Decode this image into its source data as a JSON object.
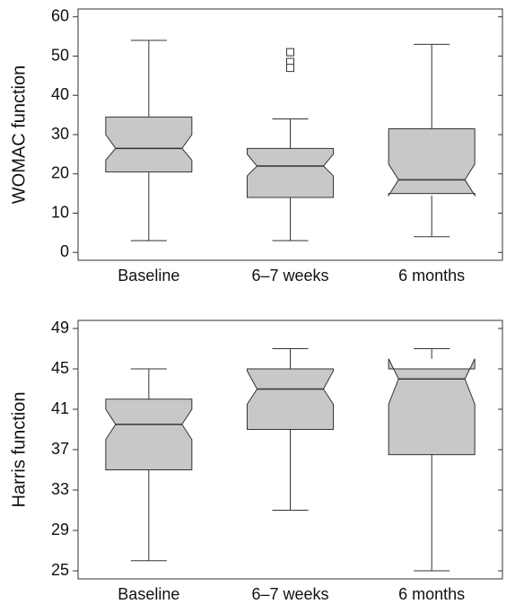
{
  "chart_data": [
    {
      "type": "box",
      "ylabel": "WOMAC function",
      "categories": [
        "Baseline",
        "6–7 weeks",
        "6 months"
      ],
      "whisker_low": [
        3,
        3,
        4
      ],
      "q1": [
        20.5,
        14,
        15
      ],
      "median": [
        26.5,
        22,
        18.5
      ],
      "q3": [
        34.5,
        26.5,
        31.5
      ],
      "whisker_high": [
        54,
        34,
        53
      ],
      "notch_low": [
        23.5,
        19.5,
        14.5
      ],
      "notch_high": [
        30,
        25,
        22.5
      ],
      "outliers": [
        [],
        [
          51,
          48.5,
          47
        ],
        []
      ],
      "ylim": [
        -2,
        62
      ],
      "yticks": [
        0,
        10,
        20,
        30,
        40,
        50,
        60
      ],
      "color": "#c8c8c8"
    },
    {
      "type": "box",
      "ylabel": "Harris function",
      "categories": [
        "Baseline",
        "6–7 weeks",
        "6 months"
      ],
      "whisker_low": [
        26,
        31,
        25
      ],
      "q1": [
        35,
        39,
        36.5
      ],
      "median": [
        39.5,
        43,
        44
      ],
      "q3": [
        42,
        45,
        45
      ],
      "whisker_high": [
        45,
        47,
        47
      ],
      "notch_low": [
        38,
        41.5,
        41.5
      ],
      "notch_high": [
        41,
        44.8,
        46
      ],
      "outliers": [
        [],
        [],
        []
      ],
      "ylim": [
        24.2,
        49.8
      ],
      "yticks": [
        25,
        29,
        33,
        37,
        41,
        45,
        49
      ],
      "color": "#c8c8c8"
    }
  ]
}
